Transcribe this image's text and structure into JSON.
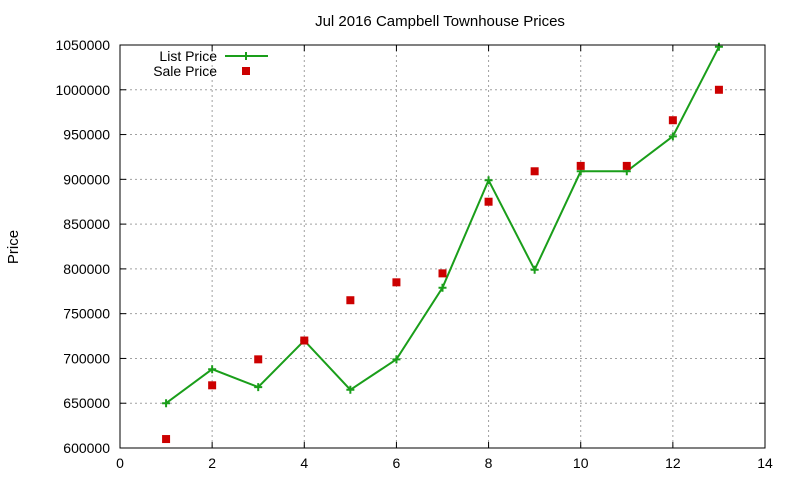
{
  "chart_data": {
    "type": "line",
    "title": "Jul 2016 Campbell Townhouse Prices",
    "xlabel": "",
    "ylabel": "Price",
    "xlim": [
      0,
      14
    ],
    "ylim": [
      600000,
      1050000
    ],
    "x_ticks": [
      0,
      2,
      4,
      6,
      8,
      10,
      12,
      14
    ],
    "y_ticks": [
      600000,
      650000,
      700000,
      750000,
      800000,
      850000,
      900000,
      950000,
      1000000,
      1050000
    ],
    "x_tick_labels": [
      "0",
      "2",
      "4",
      "6",
      "8",
      "10",
      "12",
      "14"
    ],
    "y_tick_labels": [
      "600000",
      "650000",
      "700000",
      "750000",
      "800000",
      "850000",
      "900000",
      "950000",
      "1000000",
      "1050000"
    ],
    "grid": true,
    "legend_position": "top-left",
    "series": [
      {
        "name": "List Price",
        "style": "line-with-plus-markers",
        "color": "#1a9e1a",
        "x": [
          1,
          2,
          3,
          4,
          5,
          6,
          7,
          8,
          9,
          10,
          11,
          12,
          13
        ],
        "values": [
          650000,
          688000,
          668000,
          720000,
          665000,
          699000,
          779000,
          899000,
          799000,
          909000,
          909000,
          948000,
          1048000
        ]
      },
      {
        "name": "Sale Price",
        "style": "square-markers",
        "color": "#cc0000",
        "x": [
          1,
          2,
          3,
          4,
          5,
          6,
          7,
          8,
          9,
          10,
          11,
          12,
          13
        ],
        "values": [
          610000,
          670000,
          699000,
          720000,
          765000,
          785000,
          795000,
          875000,
          909000,
          915000,
          915000,
          966000,
          1000000
        ]
      }
    ]
  }
}
